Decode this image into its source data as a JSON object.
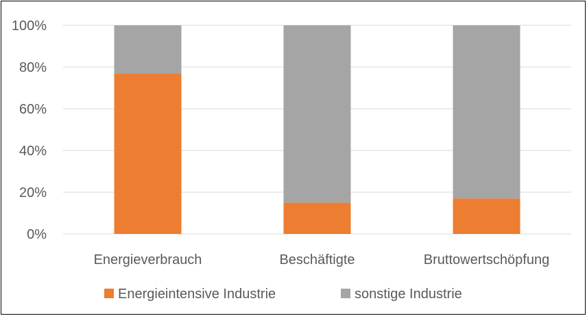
{
  "chart_data": {
    "type": "bar",
    "stacked": true,
    "categories": [
      "Energieverbrauch",
      "Beschäftigte",
      "Bruttowertschöpfung"
    ],
    "series": [
      {
        "name": "Energieintensive Industrie",
        "values": [
          77,
          15,
          17
        ],
        "color": "#ED7D31"
      },
      {
        "name": "sonstige Industrie",
        "values": [
          23,
          85,
          83
        ],
        "color": "#A5A5A5"
      }
    ],
    "yticks": [
      "0%",
      "20%",
      "40%",
      "60%",
      "80%",
      "100%"
    ],
    "ylim": [
      0,
      100
    ],
    "grid": true,
    "legend": "bottom"
  }
}
